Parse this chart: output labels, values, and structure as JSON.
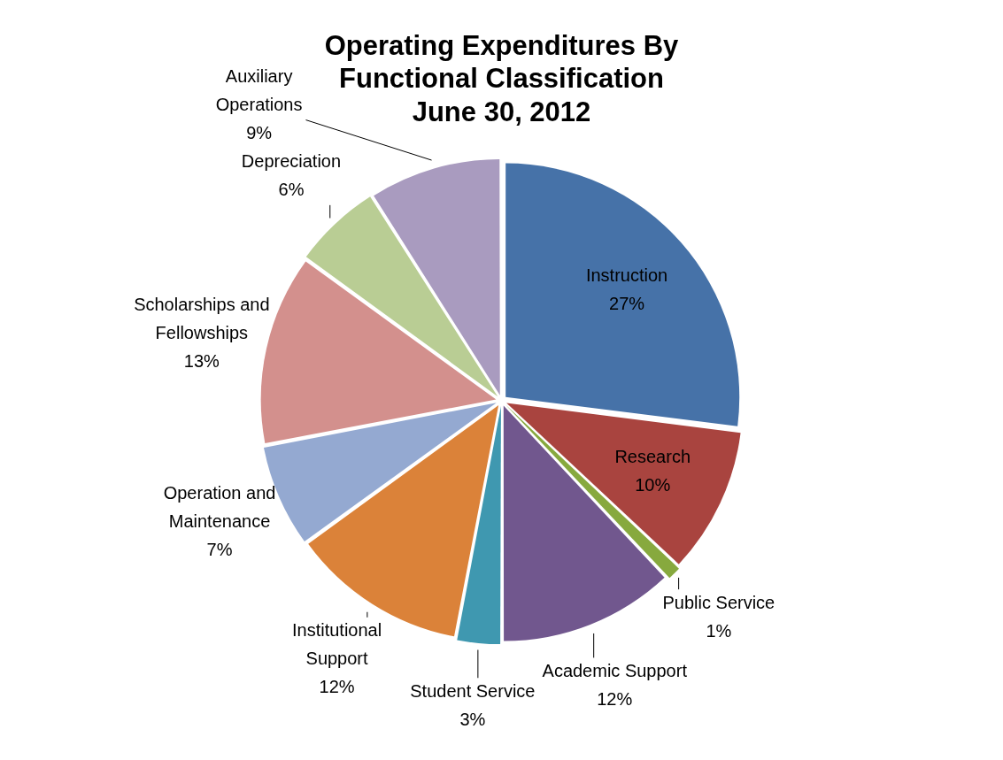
{
  "chart_data": {
    "type": "pie",
    "title": "Operating Expenditures By Functional Classification June 30, 2012",
    "categories": [
      "Instruction",
      "Research",
      "Public Service",
      "Academic Support",
      "Student Service",
      "Institutional Support",
      "Operation and Maintenance",
      "Scholarships and Fellowships",
      "Depreciation",
      "Auxiliary Operations"
    ],
    "values": [
      27,
      10,
      1,
      12,
      3,
      12,
      7,
      13,
      6,
      9
    ],
    "value_labels": [
      "27%",
      "10%",
      "1%",
      "12%",
      "3%",
      "12%",
      "7%",
      "13%",
      "6%",
      "9%"
    ],
    "colors": [
      "#4672a8",
      "#a9443f",
      "#87a93e",
      "#71578e",
      "#3f98b0",
      "#db8239",
      "#94a9d1",
      "#d3908d",
      "#b9cd94",
      "#a99bbf"
    ],
    "legend": false
  }
}
